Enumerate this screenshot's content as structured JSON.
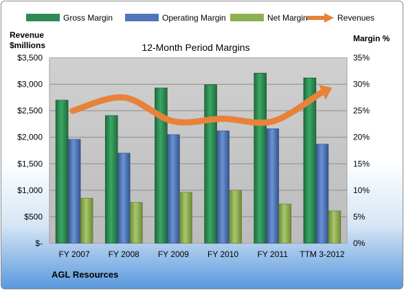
{
  "chart_data": {
    "type": "bar",
    "title": "12-Month Period Margins",
    "company": "AGL Resources",
    "ylabel_left": [
      "Revenue",
      "$millions"
    ],
    "ylabel_right": "Margin %",
    "categories": [
      "FY 2007",
      "FY 2008",
      "FY 2009",
      "FY 2010",
      "FY 2011",
      "TTM 3-2012"
    ],
    "y_left_ticks": [
      "$-",
      "$500",
      "$1,000",
      "$1,500",
      "$2,000",
      "$2,500",
      "$3,000",
      "$3,500"
    ],
    "y_right_ticks": [
      "0%",
      "5%",
      "10%",
      "15%",
      "20%",
      "25%",
      "30%",
      "35%"
    ],
    "ylim_left": [
      0,
      3500
    ],
    "ylim_right": [
      0,
      35
    ],
    "grid": true,
    "legend_position": "top",
    "series": [
      {
        "name": "Gross Margin",
        "type": "bar",
        "axis": "right",
        "color": "#2e8b57",
        "values": [
          27,
          24.1,
          29.3,
          29.9,
          32.1,
          31.2
        ]
      },
      {
        "name": "Operating Margin",
        "type": "bar",
        "axis": "right",
        "color": "#4f76b8",
        "values": [
          19.6,
          17,
          20.5,
          21.2,
          21.6,
          18.7
        ]
      },
      {
        "name": "Net Margin",
        "type": "bar",
        "axis": "right",
        "color": "#8fb050",
        "values": [
          8.5,
          7.7,
          9.6,
          10,
          7.4,
          6.1
        ]
      },
      {
        "name": "Revenues",
        "type": "line",
        "axis": "left",
        "color": "#e8823a",
        "values": [
          2500,
          2750,
          2300,
          2350,
          2300,
          2850
        ]
      }
    ]
  }
}
